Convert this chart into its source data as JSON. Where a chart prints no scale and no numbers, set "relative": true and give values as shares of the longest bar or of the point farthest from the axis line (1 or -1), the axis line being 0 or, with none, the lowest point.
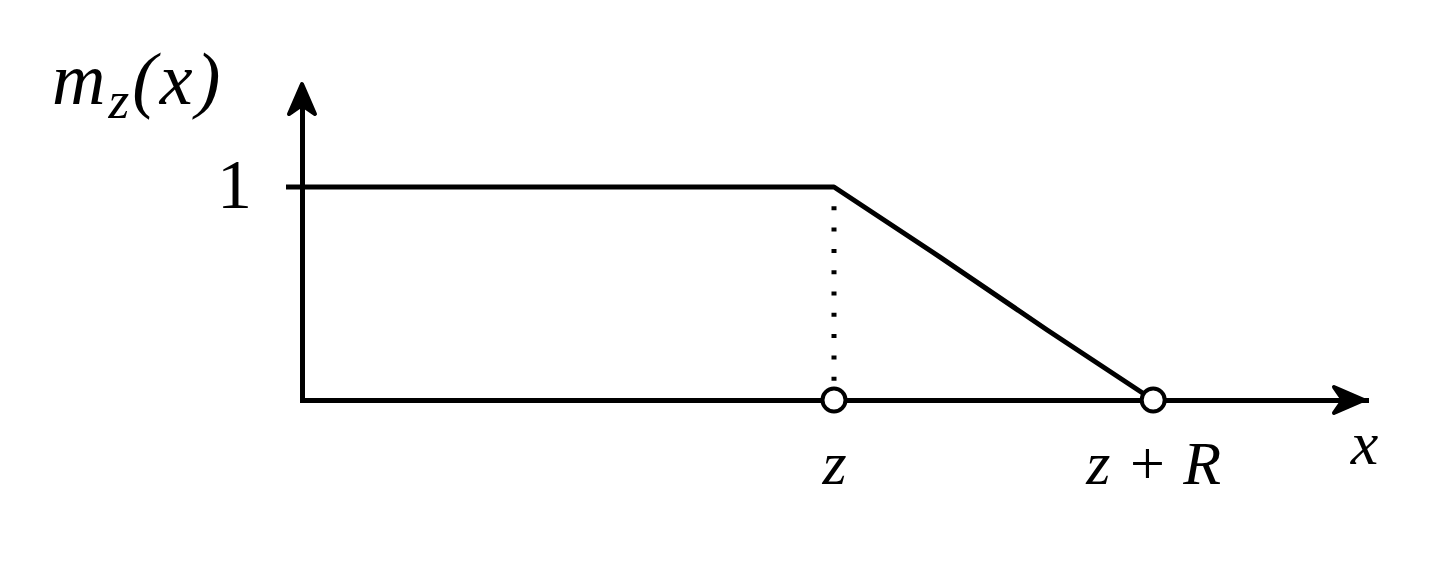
{
  "chart_data": {
    "type": "line",
    "xlabel": "x",
    "ylabel": "m$_{z}$(x)",
    "relative": true,
    "categories": [
      null,
      null,
      null,
      null,
      null,
      "z",
      null,
      null,
      "z + R",
      null,
      null
    ],
    "series": [
      {
        "color": "#000000",
        "values": [
          1,
          1,
          1,
          1,
          1,
          1,
          0.67,
          0.33,
          0,
          null,
          null
        ]
      },
      {
        "type": "scatter",
        "color": "#000000",
        "x": [
          "z",
          "z + R"
        ],
        "values": [
          0,
          0
        ],
        "marker": "circle"
      }
    ],
    "ref_lines": [
      {
        "axis": "x",
        "value": "z",
        "color": "#000000",
        "line_style": "dotted"
      }
    ],
    "annotations": [
      "1"
    ]
  }
}
